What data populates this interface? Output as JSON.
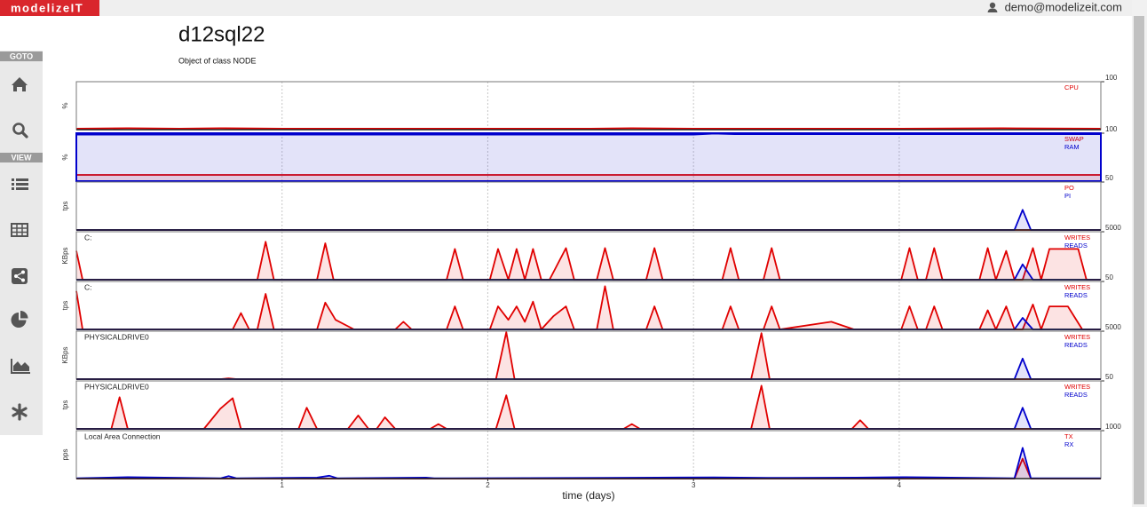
{
  "header": {
    "brand": "modelizeIT",
    "user": "demo@modelizeit.com"
  },
  "sidebar": {
    "goto": "GOTO",
    "view": "VIEW"
  },
  "page": {
    "title": "d12sql22",
    "subtitle": "Object of class NODE"
  },
  "chart_data": [
    {
      "type": "line",
      "area": true,
      "y_label": "%",
      "xlim": [
        0,
        4.98
      ],
      "xticks": [
        1,
        2,
        3,
        4
      ],
      "ylim": [
        0,
        100
      ],
      "yticks": [
        100
      ],
      "grid": true,
      "x": [
        0,
        0.25,
        0.5,
        0.7,
        1,
        1.5,
        2,
        2.5,
        2.7,
        3,
        3.5,
        4,
        4.5,
        4.98
      ],
      "series": [
        {
          "name": "CPU",
          "color": "#e00000",
          "values": [
            2,
            3,
            2,
            3,
            2,
            2,
            2,
            2,
            3,
            2,
            2,
            2,
            3,
            2
          ]
        }
      ]
    },
    {
      "type": "line",
      "area": true,
      "y_label": "%",
      "frame_color": "#0000cc",
      "xlim": [
        0,
        4.98
      ],
      "xticks": [
        1,
        2,
        3,
        4
      ],
      "ylim": [
        0,
        100
      ],
      "yticks": [
        100
      ],
      "grid": true,
      "x": [
        0,
        3.0,
        3.1,
        3.2,
        4.98
      ],
      "series": [
        {
          "name": "SWAP",
          "color": "#e00000",
          "values": [
            13,
            13,
            13,
            13,
            13
          ]
        },
        {
          "name": "RAM",
          "color": "#0000cc",
          "values": [
            97,
            97,
            99,
            98,
            98
          ]
        }
      ]
    },
    {
      "type": "line",
      "area": true,
      "y_label": "tps",
      "xlim": [
        0,
        4.98
      ],
      "xticks": [
        1,
        2,
        3,
        4
      ],
      "ylim": [
        0,
        50
      ],
      "yticks": [
        50
      ],
      "grid": true,
      "x": [
        0,
        4.56,
        4.6,
        4.64,
        4.98
      ],
      "series": [
        {
          "name": "PO",
          "color": "#e00000",
          "values": [
            0,
            0,
            0,
            0,
            0
          ]
        },
        {
          "name": "PI",
          "color": "#0000cc",
          "values": [
            0,
            0,
            21,
            0,
            0
          ]
        }
      ]
    },
    {
      "type": "line",
      "area": true,
      "y_label": "KBps",
      "annotation": "C:",
      "xlim": [
        0,
        4.98
      ],
      "xticks": [
        1,
        2,
        3,
        4
      ],
      "ylim": [
        0,
        5000
      ],
      "yticks": [
        5000
      ],
      "grid": true,
      "x": [
        0,
        0.03,
        0.88,
        0.92,
        0.96,
        1.17,
        1.21,
        1.25,
        1.8,
        1.84,
        1.88,
        2.01,
        2.05,
        2.1,
        2.14,
        2.18,
        2.22,
        2.26,
        2.3,
        2.38,
        2.42,
        2.53,
        2.57,
        2.61,
        2.77,
        2.81,
        2.85,
        3.14,
        3.18,
        3.22,
        3.34,
        3.38,
        3.42,
        4.01,
        4.05,
        4.09,
        4.13,
        4.17,
        4.21,
        4.39,
        4.43,
        4.47,
        4.52,
        4.56,
        4.6,
        4.65,
        4.69,
        4.73,
        4.87,
        4.91,
        4.98
      ],
      "series": [
        {
          "name": "WRITES",
          "color": "#e00000",
          "values": [
            3000,
            0,
            0,
            3950,
            0,
            0,
            3800,
            0,
            0,
            3200,
            0,
            0,
            3200,
            0,
            3200,
            0,
            3200,
            0,
            0,
            3300,
            0,
            0,
            3300,
            0,
            0,
            3300,
            0,
            0,
            3300,
            0,
            0,
            3300,
            0,
            0,
            3300,
            0,
            0,
            3300,
            0,
            0,
            3300,
            0,
            3000,
            0,
            0,
            3300,
            0,
            3200,
            3200,
            0,
            0
          ]
        },
        {
          "name": "READS",
          "color": "#0000cc",
          "values": [
            0,
            0,
            0,
            0,
            0,
            0,
            0,
            0,
            0,
            0,
            0,
            0,
            0,
            0,
            0,
            0,
            0,
            0,
            0,
            0,
            0,
            0,
            0,
            0,
            0,
            0,
            0,
            0,
            0,
            0,
            0,
            0,
            0,
            0,
            0,
            0,
            0,
            0,
            0,
            0,
            0,
            0,
            0,
            0,
            1600,
            0,
            0,
            0,
            0,
            0,
            0
          ]
        }
      ]
    },
    {
      "type": "line",
      "area": true,
      "y_label": "tps",
      "annotation": "C:",
      "xlim": [
        0,
        4.98
      ],
      "xticks": [
        1,
        2,
        3,
        4
      ],
      "ylim": [
        0,
        50
      ],
      "yticks": [
        50
      ],
      "grid": true,
      "x": [
        0,
        0.03,
        0.76,
        0.8,
        0.84,
        0.88,
        0.92,
        0.96,
        1.17,
        1.21,
        1.26,
        1.35,
        1.55,
        1.59,
        1.63,
        1.8,
        1.84,
        1.88,
        2.01,
        2.05,
        2.1,
        2.14,
        2.18,
        2.22,
        2.26,
        2.32,
        2.38,
        2.42,
        2.53,
        2.57,
        2.61,
        2.77,
        2.81,
        2.85,
        3.14,
        3.18,
        3.22,
        3.34,
        3.38,
        3.42,
        3.67,
        3.78,
        4.01,
        4.05,
        4.09,
        4.13,
        4.17,
        4.21,
        4.39,
        4.43,
        4.47,
        4.52,
        4.56,
        4.6,
        4.65,
        4.69,
        4.73,
        4.82,
        4.89,
        4.98
      ],
      "series": [
        {
          "name": "WRITES",
          "color": "#e00000",
          "values": [
            40,
            0,
            0,
            17,
            0,
            0,
            37,
            0,
            0,
            28,
            10,
            0,
            0,
            8,
            0,
            0,
            24,
            0,
            0,
            24,
            10,
            24,
            8,
            29,
            0,
            14,
            24,
            0,
            0,
            45,
            0,
            0,
            24,
            0,
            0,
            24,
            0,
            0,
            24,
            0,
            8,
            0,
            0,
            24,
            0,
            0,
            24,
            0,
            0,
            20,
            0,
            24,
            0,
            0,
            26,
            0,
            24,
            24,
            0,
            0
          ]
        },
        {
          "name": "READS",
          "color": "#0000cc",
          "values": [
            0,
            0,
            0,
            0,
            0,
            0,
            0,
            0,
            0,
            0,
            0,
            0,
            0,
            0,
            0,
            0,
            0,
            0,
            0,
            0,
            0,
            0,
            0,
            0,
            0,
            0,
            0,
            0,
            0,
            0,
            0,
            0,
            0,
            0,
            0,
            0,
            0,
            0,
            0,
            0,
            0,
            0,
            0,
            0,
            0,
            0,
            0,
            0,
            0,
            0,
            0,
            0,
            0,
            12,
            0,
            0,
            0,
            0,
            0,
            0
          ]
        }
      ]
    },
    {
      "type": "line",
      "area": true,
      "y_label": "KBps",
      "annotation": "PHYSICALDRIVE0",
      "xlim": [
        0,
        4.98
      ],
      "xticks": [
        1,
        2,
        3,
        4
      ],
      "ylim": [
        0,
        5000
      ],
      "yticks": [
        5000
      ],
      "grid": true,
      "x": [
        0,
        0.7,
        0.74,
        0.78,
        2.04,
        2.09,
        2.13,
        3.28,
        3.33,
        3.37,
        4.56,
        4.6,
        4.64,
        4.98
      ],
      "series": [
        {
          "name": "WRITES",
          "color": "#e00000",
          "values": [
            0,
            0,
            80,
            0,
            0,
            4900,
            0,
            0,
            4800,
            0,
            0,
            0,
            0,
            0
          ]
        },
        {
          "name": "READS",
          "color": "#0000cc",
          "values": [
            0,
            0,
            0,
            0,
            0,
            0,
            0,
            0,
            0,
            0,
            0,
            2150,
            0,
            0
          ]
        }
      ]
    },
    {
      "type": "line",
      "area": true,
      "y_label": "tps",
      "annotation": "PHYSICALDRIVE0",
      "xlim": [
        0,
        4.98
      ],
      "xticks": [
        1,
        2,
        3,
        4
      ],
      "ylim": [
        0,
        50
      ],
      "yticks": [
        50
      ],
      "grid": true,
      "x": [
        0,
        0.17,
        0.21,
        0.25,
        0.62,
        0.7,
        0.76,
        0.8,
        1.08,
        1.12,
        1.17,
        1.32,
        1.37,
        1.42,
        1.46,
        1.5,
        1.55,
        1.72,
        1.76,
        1.8,
        2.04,
        2.09,
        2.13,
        2.66,
        2.7,
        2.74,
        3.28,
        3.33,
        3.37,
        3.77,
        3.81,
        3.85,
        4.56,
        4.6,
        4.64,
        4.98
      ],
      "series": [
        {
          "name": "WRITES",
          "color": "#e00000",
          "values": [
            0,
            0,
            33,
            0,
            0,
            21,
            32,
            0,
            0,
            22,
            0,
            0,
            14,
            0,
            0,
            12,
            0,
            0,
            5,
            0,
            0,
            35,
            0,
            0,
            5,
            0,
            0,
            45,
            0,
            0,
            9,
            0,
            0,
            0,
            0,
            0
          ]
        },
        {
          "name": "READS",
          "color": "#0000cc",
          "values": [
            0,
            0,
            0,
            0,
            0,
            0,
            0,
            0,
            0,
            0,
            0,
            0,
            0,
            0,
            0,
            0,
            0,
            0,
            0,
            0,
            0,
            0,
            0,
            0,
            0,
            0,
            0,
            0,
            0,
            0,
            0,
            0,
            0,
            22,
            0,
            0
          ]
        }
      ]
    },
    {
      "type": "line",
      "area": true,
      "y_label": "pps",
      "annotation": "Local Area Connection",
      "x_label": "time (days)",
      "x_tick_labels": true,
      "xlim": [
        0,
        4.98
      ],
      "xticks": [
        1,
        2,
        3,
        4
      ],
      "ylim": [
        0,
        1000
      ],
      "yticks": [
        1000
      ],
      "grid": true,
      "x": [
        0,
        0.25,
        0.7,
        0.74,
        0.78,
        1.17,
        1.23,
        1.27,
        1.7,
        1.74,
        2.57,
        2.82,
        3.1,
        3.36,
        3.79,
        4.03,
        4.15,
        4.56,
        4.6,
        4.64,
        4.98
      ],
      "series": [
        {
          "name": "TX",
          "color": "#e00000",
          "values": [
            0,
            0,
            0,
            0,
            0,
            0,
            0,
            0,
            0,
            0,
            0,
            0,
            0,
            0,
            0,
            0,
            0,
            0,
            415,
            0,
            0
          ]
        },
        {
          "name": "RX",
          "color": "#0000cc",
          "values": [
            5,
            30,
            5,
            50,
            5,
            20,
            60,
            5,
            20,
            5,
            15,
            20,
            25,
            15,
            20,
            30,
            25,
            5,
            640,
            5,
            5
          ]
        }
      ]
    }
  ]
}
